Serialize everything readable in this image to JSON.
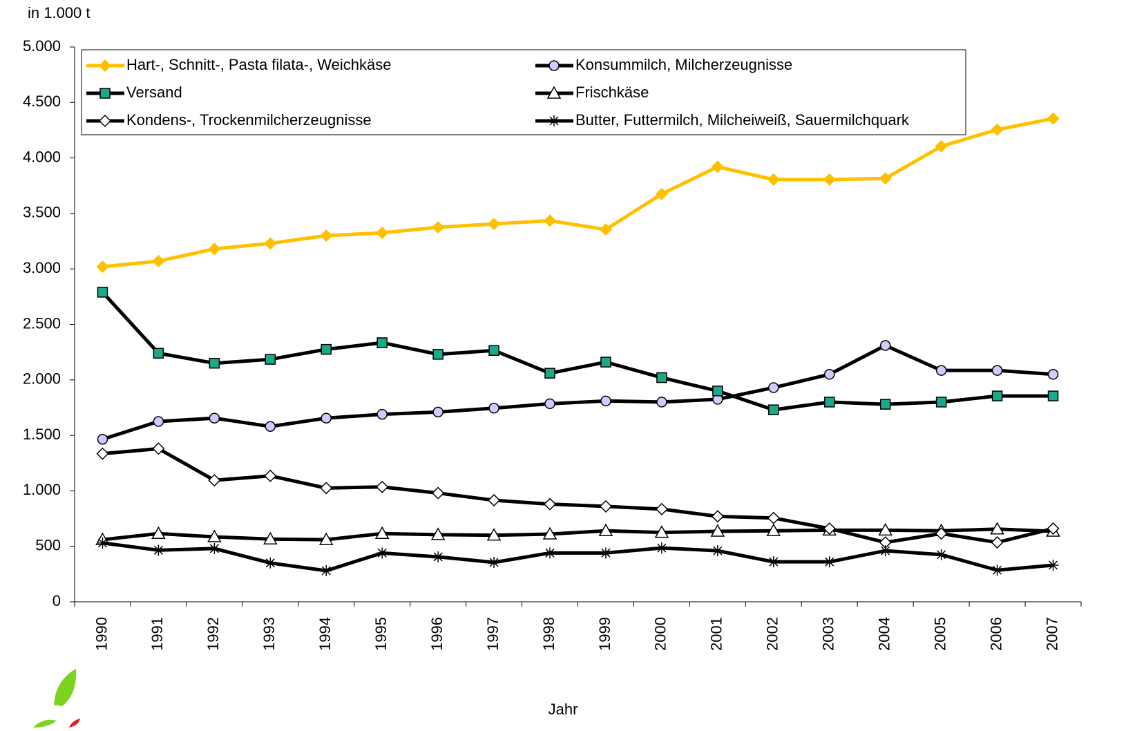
{
  "chart_data": {
    "type": "line",
    "y_axis_label": "in 1.000 t",
    "x_axis_label": "Jahr",
    "categories": [
      "1990",
      "1991",
      "1992",
      "1993",
      "1994",
      "1995",
      "1996",
      "1997",
      "1998",
      "1999",
      "2000",
      "2001",
      "2002",
      "2003",
      "2004",
      "2005",
      "2006",
      "2007"
    ],
    "ylim": [
      0,
      5000
    ],
    "yticks": [
      0,
      500,
      {
        "value": 1000,
        "label": "1.000"
      },
      {
        "value": 1500,
        "label": "1.500"
      },
      {
        "value": 2000,
        "label": "2.000"
      },
      {
        "value": 2500,
        "label": "2.500"
      },
      {
        "value": 3000,
        "label": "3.000"
      },
      {
        "value": 3500,
        "label": "3.500"
      },
      {
        "value": 4000,
        "label": "4.000"
      },
      {
        "value": 4500,
        "label": "4.500"
      },
      {
        "value": 5000,
        "label": "5.000"
      }
    ],
    "series": [
      {
        "name": "Hart-, Schnitt-, Pasta filata-, Weichkäse",
        "color": "#ffc000",
        "marker": "diamond",
        "marker_fill": "#ffc000",
        "values": [
          3020,
          3070,
          3180,
          3230,
          3300,
          3325,
          3375,
          3405,
          3435,
          3355,
          3675,
          3920,
          3805,
          3805,
          3815,
          4105,
          4255,
          4355
        ]
      },
      {
        "name": "Konsummilch, Milcherzeugnisse",
        "color": "#000000",
        "marker": "circle",
        "marker_fill": "#ccccff",
        "values": [
          1465,
          1625,
          1655,
          1580,
          1655,
          1690,
          1710,
          1745,
          1785,
          1810,
          1800,
          1825,
          1930,
          2050,
          2310,
          2085,
          2085,
          2050
        ]
      },
      {
        "name": "Versand",
        "color": "#000000",
        "marker": "square",
        "marker_fill": "#1aaa8a",
        "values": [
          2790,
          2240,
          2150,
          2185,
          2275,
          2335,
          2230,
          2265,
          2060,
          2160,
          2020,
          1900,
          1730,
          1800,
          1780,
          1800,
          1855,
          1855
        ]
      },
      {
        "name": "Frischkäse",
        "color": "#000000",
        "marker": "triangle",
        "marker_fill": "#ffffff",
        "values": [
          560,
          615,
          585,
          565,
          560,
          615,
          605,
          600,
          610,
          640,
          625,
          635,
          640,
          645,
          645,
          640,
          655,
          635
        ]
      },
      {
        "name": "Kondens-, Trockenmilcherzeugnisse",
        "color": "#000000",
        "marker": "diamond",
        "marker_fill": "#ffffff",
        "values": [
          1335,
          1380,
          1095,
          1135,
          1025,
          1035,
          980,
          915,
          880,
          860,
          835,
          770,
          755,
          660,
          535,
          615,
          535,
          660
        ]
      },
      {
        "name": "Butter, Futtermilch, Milcheiweiß, Sauermilchquark",
        "color": "#000000",
        "marker": "star",
        "marker_fill": "#000000",
        "values": [
          530,
          465,
          480,
          350,
          280,
          440,
          405,
          355,
          440,
          440,
          485,
          460,
          360,
          360,
          460,
          425,
          285,
          330
        ]
      }
    ]
  }
}
